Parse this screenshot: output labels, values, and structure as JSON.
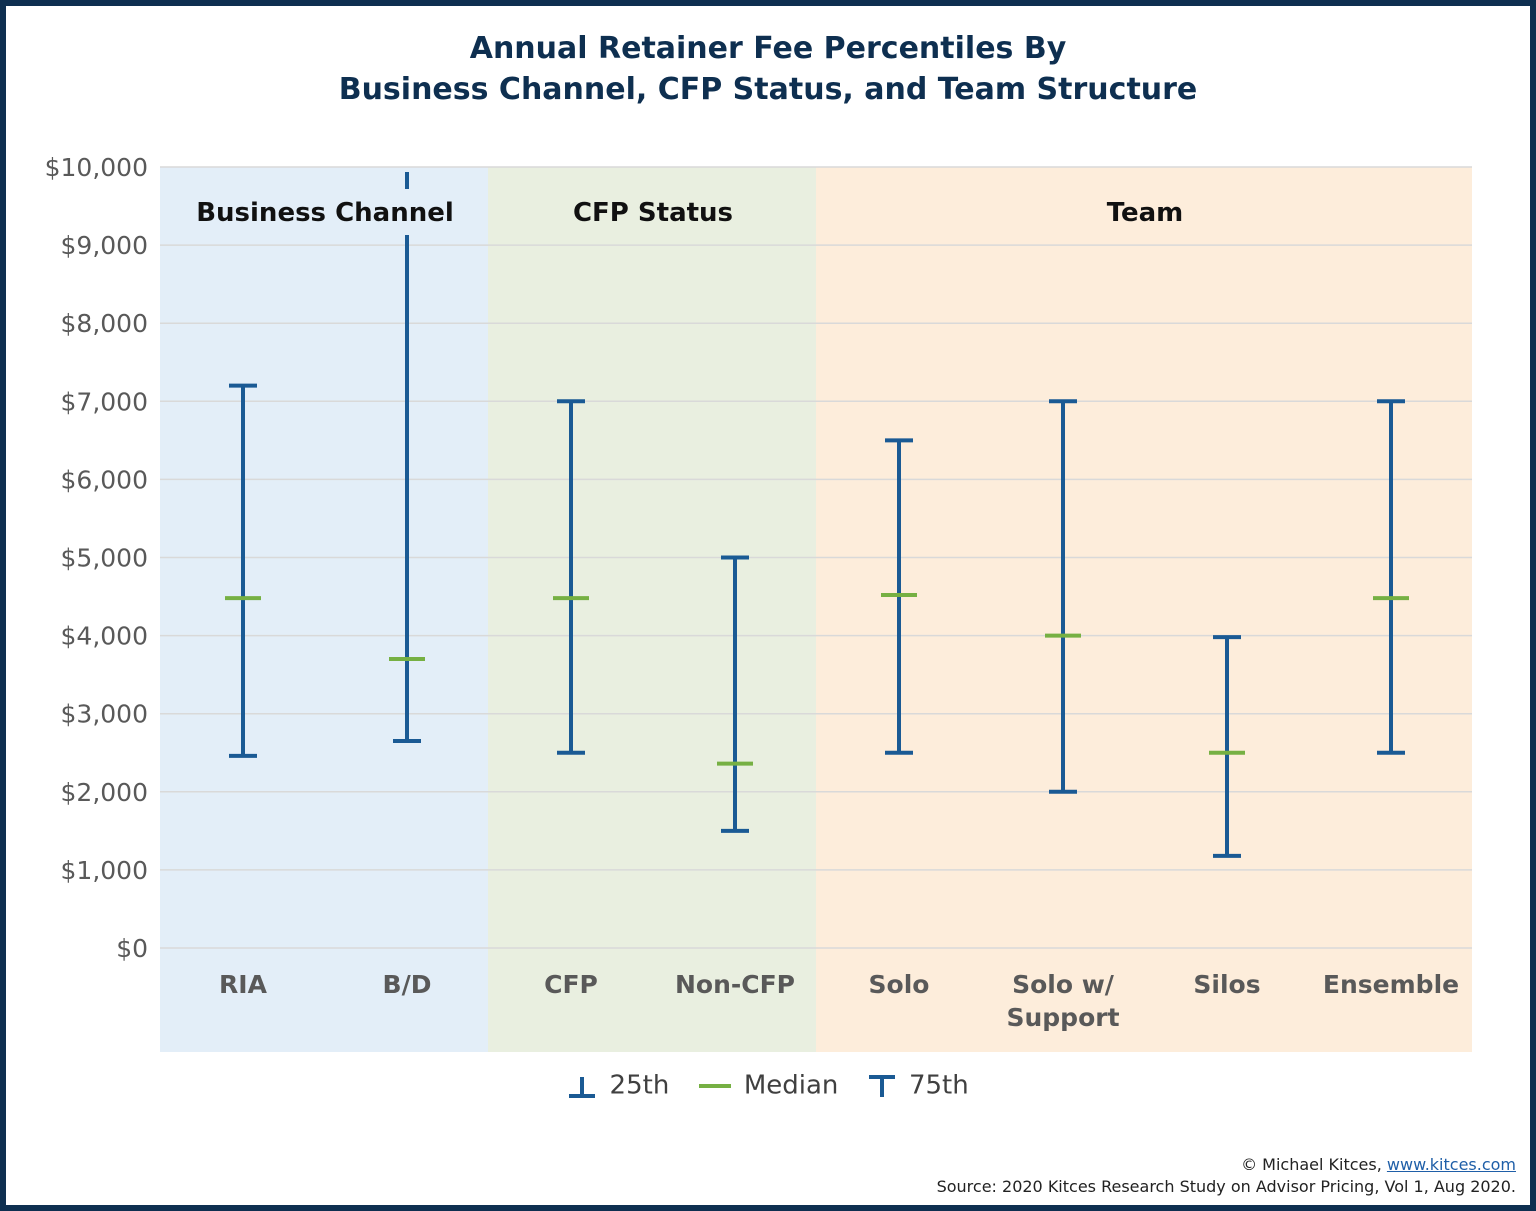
{
  "title_line1": "Annual Retainer Fee Percentiles By",
  "title_line2": "Business Channel, CFP Status, and Team Structure",
  "colors": {
    "whisker": "#1a5a94",
    "median": "#76b043",
    "grid": "#d9d9d9",
    "band_business": "#e3eef8",
    "band_cfp": "#e9efe0",
    "band_team": "#fdeddb",
    "text_axis": "#595959",
    "text_title": "#0e2f50"
  },
  "legend": {
    "p25": "25th",
    "median": "Median",
    "p75": "75th"
  },
  "footer": {
    "copyright": "© Michael Kitces, ",
    "link": "www.kitces.com",
    "source": "Source: 2020 Kitces Research Study on Advisor Pricing, Vol 1, Aug 2020."
  },
  "chart_data": {
    "type": "range",
    "ylim": [
      0,
      10000
    ],
    "yticks": [
      0,
      1000,
      2000,
      3000,
      4000,
      5000,
      6000,
      7000,
      8000,
      9000,
      10000
    ],
    "ytick_labels": [
      "$0",
      "$1,000",
      "$2,000",
      "$3,000",
      "$4,000",
      "$5,000",
      "$6,000",
      "$7,000",
      "$8,000",
      "$9,000",
      "$10,000"
    ],
    "grid": true,
    "legend_position": "bottom-center",
    "groups": [
      {
        "label": "Business Channel",
        "categories": [
          "RIA",
          "B/D"
        ]
      },
      {
        "label": "CFP Status",
        "categories": [
          "CFP",
          "Non-CFP"
        ]
      },
      {
        "label": "Team",
        "categories": [
          "Solo",
          "Solo w/ Support",
          "Silos",
          "Ensemble"
        ]
      }
    ],
    "categories": [
      "RIA",
      "B/D",
      "CFP",
      "Non-CFP",
      "Solo",
      "Solo w/ Support",
      "Silos",
      "Ensemble"
    ],
    "category_label_lines": [
      [
        "RIA"
      ],
      [
        "B/D"
      ],
      [
        "CFP"
      ],
      [
        "Non-CFP"
      ],
      [
        "Solo"
      ],
      [
        "Solo w/",
        "Support"
      ],
      [
        "Silos"
      ],
      [
        "Ensemble"
      ]
    ],
    "series": [
      {
        "name": "25th",
        "values": [
          2460,
          2650,
          2500,
          1500,
          2500,
          2000,
          1180,
          2500
        ]
      },
      {
        "name": "Median",
        "values": [
          4480,
          3700,
          4480,
          2360,
          4520,
          4000,
          2500,
          4480
        ]
      },
      {
        "name": "75th",
        "values": [
          7200,
          10000,
          7000,
          5000,
          6500,
          7000,
          3980,
          7000
        ]
      }
    ]
  }
}
